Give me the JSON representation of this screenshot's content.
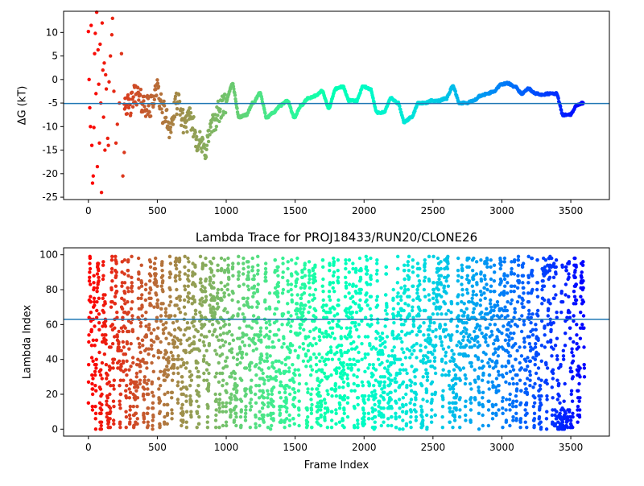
{
  "chart_data": [
    {
      "type": "scatter",
      "title": "",
      "xlabel": "",
      "ylabel": "ΔG (kT)",
      "xlim": [
        -180,
        3780
      ],
      "ylim": [
        -25.5,
        14.5
      ],
      "xticks": [
        0,
        500,
        1000,
        1500,
        2000,
        2500,
        3000,
        3500
      ],
      "yticks": [
        -25,
        -20,
        -15,
        -10,
        -5,
        0,
        5,
        10
      ],
      "hline": -5.1,
      "colormap": "rainbow (red → violet with frame index)",
      "early_points": [
        {
          "x": 0,
          "y": 10.2
        },
        {
          "x": 5,
          "y": 0
        },
        {
          "x": 10,
          "y": -6
        },
        {
          "x": 15,
          "y": -10
        },
        {
          "x": 20,
          "y": 11.5
        },
        {
          "x": 25,
          "y": -14
        },
        {
          "x": 30,
          "y": -22
        },
        {
          "x": 35,
          "y": -20.5
        },
        {
          "x": 40,
          "y": -10.2
        },
        {
          "x": 45,
          "y": 5.5
        },
        {
          "x": 50,
          "y": 9.8
        },
        {
          "x": 55,
          "y": -3
        },
        {
          "x": 60,
          "y": 14.3
        },
        {
          "x": 65,
          "y": -18.5
        },
        {
          "x": 70,
          "y": 6.3
        },
        {
          "x": 75,
          "y": -1
        },
        {
          "x": 80,
          "y": -13.5
        },
        {
          "x": 85,
          "y": 7.5
        },
        {
          "x": 90,
          "y": -5
        },
        {
          "x": 95,
          "y": -24
        },
        {
          "x": 100,
          "y": 12
        },
        {
          "x": 105,
          "y": 2
        },
        {
          "x": 110,
          "y": -8
        },
        {
          "x": 115,
          "y": 3.5
        },
        {
          "x": 120,
          "y": -15
        },
        {
          "x": 125,
          "y": 1
        },
        {
          "x": 130,
          "y": -2
        },
        {
          "x": 140,
          "y": -12.5
        },
        {
          "x": 145,
          "y": -14
        },
        {
          "x": 150,
          "y": -0.5
        },
        {
          "x": 160,
          "y": 5
        },
        {
          "x": 170,
          "y": 9.5
        },
        {
          "x": 175,
          "y": 13
        },
        {
          "x": 185,
          "y": -2.5
        },
        {
          "x": 200,
          "y": -13.5
        },
        {
          "x": 210,
          "y": -9.5
        },
        {
          "x": 225,
          "y": -5
        },
        {
          "x": 240,
          "y": 5.5
        },
        {
          "x": 250,
          "y": -20.5
        },
        {
          "x": 260,
          "y": -15.5
        }
      ],
      "trace_x": [
        260,
        300,
        350,
        400,
        450,
        500,
        550,
        600,
        650,
        700,
        750,
        800,
        850,
        900,
        950,
        1000,
        1050,
        1100,
        1150,
        1200,
        1250,
        1300,
        1350,
        1400,
        1450,
        1500,
        1550,
        1600,
        1650,
        1700,
        1750,
        1800,
        1850,
        1900,
        1950,
        2000,
        2050,
        2100,
        2150,
        2200,
        2250,
        2300,
        2350,
        2400,
        2450,
        2500,
        2550,
        2600,
        2650,
        2700,
        2750,
        2800,
        2850,
        2900,
        2950,
        3000,
        3050,
        3100,
        3150,
        3200,
        3250,
        3300,
        3350,
        3400,
        3450,
        3500,
        3550,
        3590
      ],
      "trace_y": [
        -4,
        -6,
        -3,
        -5,
        -6,
        -2,
        -7,
        -10,
        -5,
        -9,
        -8.5,
        -13,
        -15,
        -10,
        -7,
        -5,
        -1,
        -8,
        -7.5,
        -5,
        -3,
        -8,
        -7,
        -5.5,
        -4.5,
        -8,
        -5.5,
        -4,
        -3.5,
        -2.5,
        -6,
        -2,
        -1.5,
        -4.5,
        -4.5,
        -1.5,
        -2,
        -7,
        -7,
        -4,
        -5,
        -9,
        -8,
        -5,
        -5,
        -4.5,
        -4.5,
        -4,
        -1.5,
        -5,
        -5,
        -4.5,
        -3.5,
        -3,
        -2.5,
        -1,
        -0.8,
        -1.5,
        -3,
        -2,
        -3,
        -3.2,
        -3,
        -3,
        -7.5,
        -7.5,
        -5.5,
        -5
      ]
    },
    {
      "type": "scatter",
      "title": "Lambda Trace for PROJ18433/RUN20/CLONE26",
      "xlabel": "Frame Index",
      "ylabel": "Lambda Index",
      "xlim": [
        -180,
        3780
      ],
      "ylim": [
        -4,
        104
      ],
      "xticks": [
        0,
        500,
        1000,
        1500,
        2000,
        2500,
        3000,
        3500
      ],
      "yticks": [
        0,
        20,
        40,
        60,
        80,
        100
      ],
      "hline": 63,
      "colormap": "rainbow (red → violet with frame index)",
      "n_frames": 3600,
      "value_range": [
        0,
        99
      ]
    }
  ]
}
